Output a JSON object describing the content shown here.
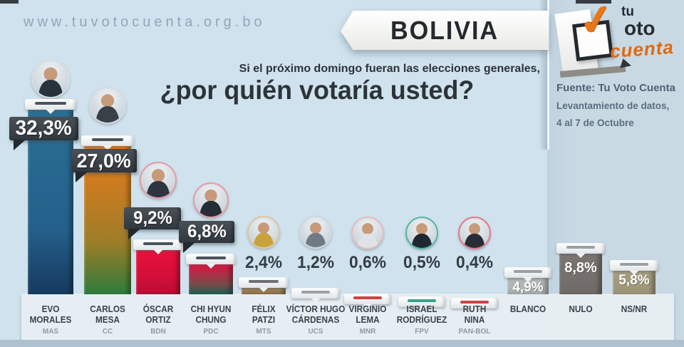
{
  "page": {
    "website": "www.tuvotocuenta.org.bo",
    "banner": "BOLIVIA",
    "question_line1": "Si el próximo domingo fueran las elecciones generales,",
    "question_line2": "¿por quién votaría usted?",
    "source": {
      "line1": "Fuente: Tu Voto Cuenta",
      "line2": "Levantamiento de datos,",
      "line3": "4 al 7 de Octubre"
    },
    "logo": {
      "word_tu": "tu",
      "word_oto": "oto",
      "word_cuenta": "cuenta",
      "check_icon": "✓"
    }
  },
  "colors": {
    "background": "#cfe2ed",
    "panel": "#c5d6e2",
    "floor": "#e7eef3",
    "bottom_strip": "#aec1cf",
    "badge": "#3a4148"
  },
  "chart_data": {
    "type": "bar",
    "title": "¿por quién votaría usted?",
    "subtitle": "Si el próximo domingo fueran las elecciones generales,",
    "source": "Fuente: Tu Voto Cuenta — Levantamiento de datos, 4 al 7 de Octubre",
    "unit": "%",
    "decimal_style": "comma",
    "ylim": [
      0,
      35
    ],
    "legend": "none",
    "grid": false,
    "categories": [
      "EVO MORALES",
      "CARLOS MESA",
      "ÓSCAR ORTIZ",
      "CHI HYUN CHUNG",
      "FÉLIX PATZI",
      "VÍCTOR HUGO CÁRDENAS",
      "VIRGINIO LEMA",
      "ISRAEL RODRÍGUEZ",
      "RUTH NINA",
      "BLANCO",
      "NULO",
      "NS/NR"
    ],
    "values": [
      32.3,
      27.0,
      9.2,
      6.8,
      2.4,
      1.2,
      0.6,
      0.5,
      0.4,
      4.9,
      8.8,
      5.8
    ],
    "bars": [
      {
        "name_lines": [
          "EVO",
          "MORALES"
        ],
        "party": "MAS",
        "value": 32.3,
        "label": "32,3%",
        "label_style": "badge",
        "bar_top": "#2a6f94",
        "bar_mid": "#24608a",
        "bar_bottom": "#16395f",
        "slot": "#4a545e",
        "ring": "#d5dde2",
        "figure": "#27323c",
        "has_photo": true
      },
      {
        "name_lines": [
          "CARLOS",
          "MESA"
        ],
        "party": "CC",
        "value": 27.0,
        "label": "27,0%",
        "label_style": "badge",
        "bar_top": "#ea7a1a",
        "bar_mid": "#9d7d28",
        "bar_bottom": "#2e7b3d",
        "slot": "#4a545e",
        "ring": "#d5dde2",
        "figure": "#3a4048",
        "has_photo": true
      },
      {
        "name_lines": [
          "ÓSCAR",
          "ORTIZ"
        ],
        "party": "BDN",
        "value": 9.2,
        "label": "9,2%",
        "label_style": "badge",
        "bar_top": "#e8103c",
        "bar_mid": "#d10f38",
        "bar_bottom": "#b40e34",
        "slot": "#4a545e",
        "ring": "#e59aa5",
        "figure": "#2c3640",
        "has_photo": true
      },
      {
        "name_lines": [
          "CHI HYUN",
          "CHUNG"
        ],
        "party": "PDC",
        "value": 6.8,
        "label": "6,8%",
        "label_style": "badge",
        "bar_top": "#e01240",
        "bar_mid": "#7a4a4a",
        "bar_bottom": "#1e5c52",
        "slot": "#4a545e",
        "ring": "#e59aa5",
        "figure": "#262d36",
        "has_photo": true
      },
      {
        "name_lines": [
          "FÉLIX",
          "PATZI"
        ],
        "party": "MTS",
        "value": 2.4,
        "label": "2,4%",
        "label_style": "plain",
        "bar_top": "#a3845c",
        "bar_mid": "#97794f",
        "bar_bottom": "#8a6d45",
        "slot": "#6a6f74",
        "ring": "#dcc79e",
        "figure": "#c9a23c",
        "has_photo": true
      },
      {
        "name_lines": [
          "VÍCTOR HUGO",
          "CÁRDENAS"
        ],
        "party": "UCS",
        "value": 1.2,
        "label": "1,2%",
        "label_style": "plain",
        "bar_top": "#9aa2a8",
        "bar_mid": "#939ba1",
        "bar_bottom": "#8a9298",
        "slot": "#9aa0a6",
        "ring": "#cfd8de",
        "figure": "#6f7a84",
        "has_photo": true
      },
      {
        "name_lines": [
          "VIRGINIO",
          "LEMA"
        ],
        "party": "MNR",
        "value": 0.6,
        "label": "0,6%",
        "label_style": "plain",
        "bar_top": "#c2303c",
        "bar_mid": "#c2303c",
        "bar_bottom": "#c2303c",
        "slot": "#cc4444",
        "ring": "#e3bcbc",
        "figure": "#dfe3e6",
        "has_photo": true
      },
      {
        "name_lines": [
          "ISRAEL",
          "RODRÍGUEZ"
        ],
        "party": "FPV",
        "value": 0.5,
        "label": "0,5%",
        "label_style": "plain",
        "bar_top": "#3aa08e",
        "bar_mid": "#3aa08e",
        "bar_bottom": "#3aa08e",
        "slot": "#3aa08e",
        "ring": "#54b8a6",
        "figure": "#1f2830",
        "has_photo": true
      },
      {
        "name_lines": [
          "RUTH",
          "NINA"
        ],
        "party": "PAN-BOL",
        "value": 0.4,
        "label": "0,4%",
        "label_style": "plain",
        "bar_top": "#c2303c",
        "bar_mid": "#c2303c",
        "bar_bottom": "#c2303c",
        "slot": "#cc4444",
        "ring": "#e07b8b",
        "figure": "#282c34",
        "has_photo": true
      },
      {
        "name_lines": [
          "BLANCO"
        ],
        "party": "",
        "value": 4.9,
        "label": "4,9%",
        "label_style": "inside",
        "bar_top": "#b4bab9",
        "bar_mid": "#adb3b2",
        "bar_bottom": "#a6acab",
        "slot": "#9aa0a6",
        "ring": "",
        "figure": "",
        "has_photo": false
      },
      {
        "name_lines": [
          "NULO"
        ],
        "party": "",
        "value": 8.8,
        "label": "8,8%",
        "label_style": "inside",
        "bar_top": "#7b7572",
        "bar_mid": "#746f6c",
        "bar_bottom": "#6e6966",
        "slot": "#9aa0a6",
        "ring": "",
        "figure": "",
        "has_photo": false
      },
      {
        "name_lines": [
          "NS/NR"
        ],
        "party": "",
        "value": 5.8,
        "label": "5,8%",
        "label_style": "inside",
        "bar_top": "#a89f82",
        "bar_mid": "#a1987c",
        "bar_bottom": "#9b9276",
        "slot": "#9aa0a6",
        "ring": "",
        "figure": "",
        "has_photo": false
      }
    ]
  }
}
